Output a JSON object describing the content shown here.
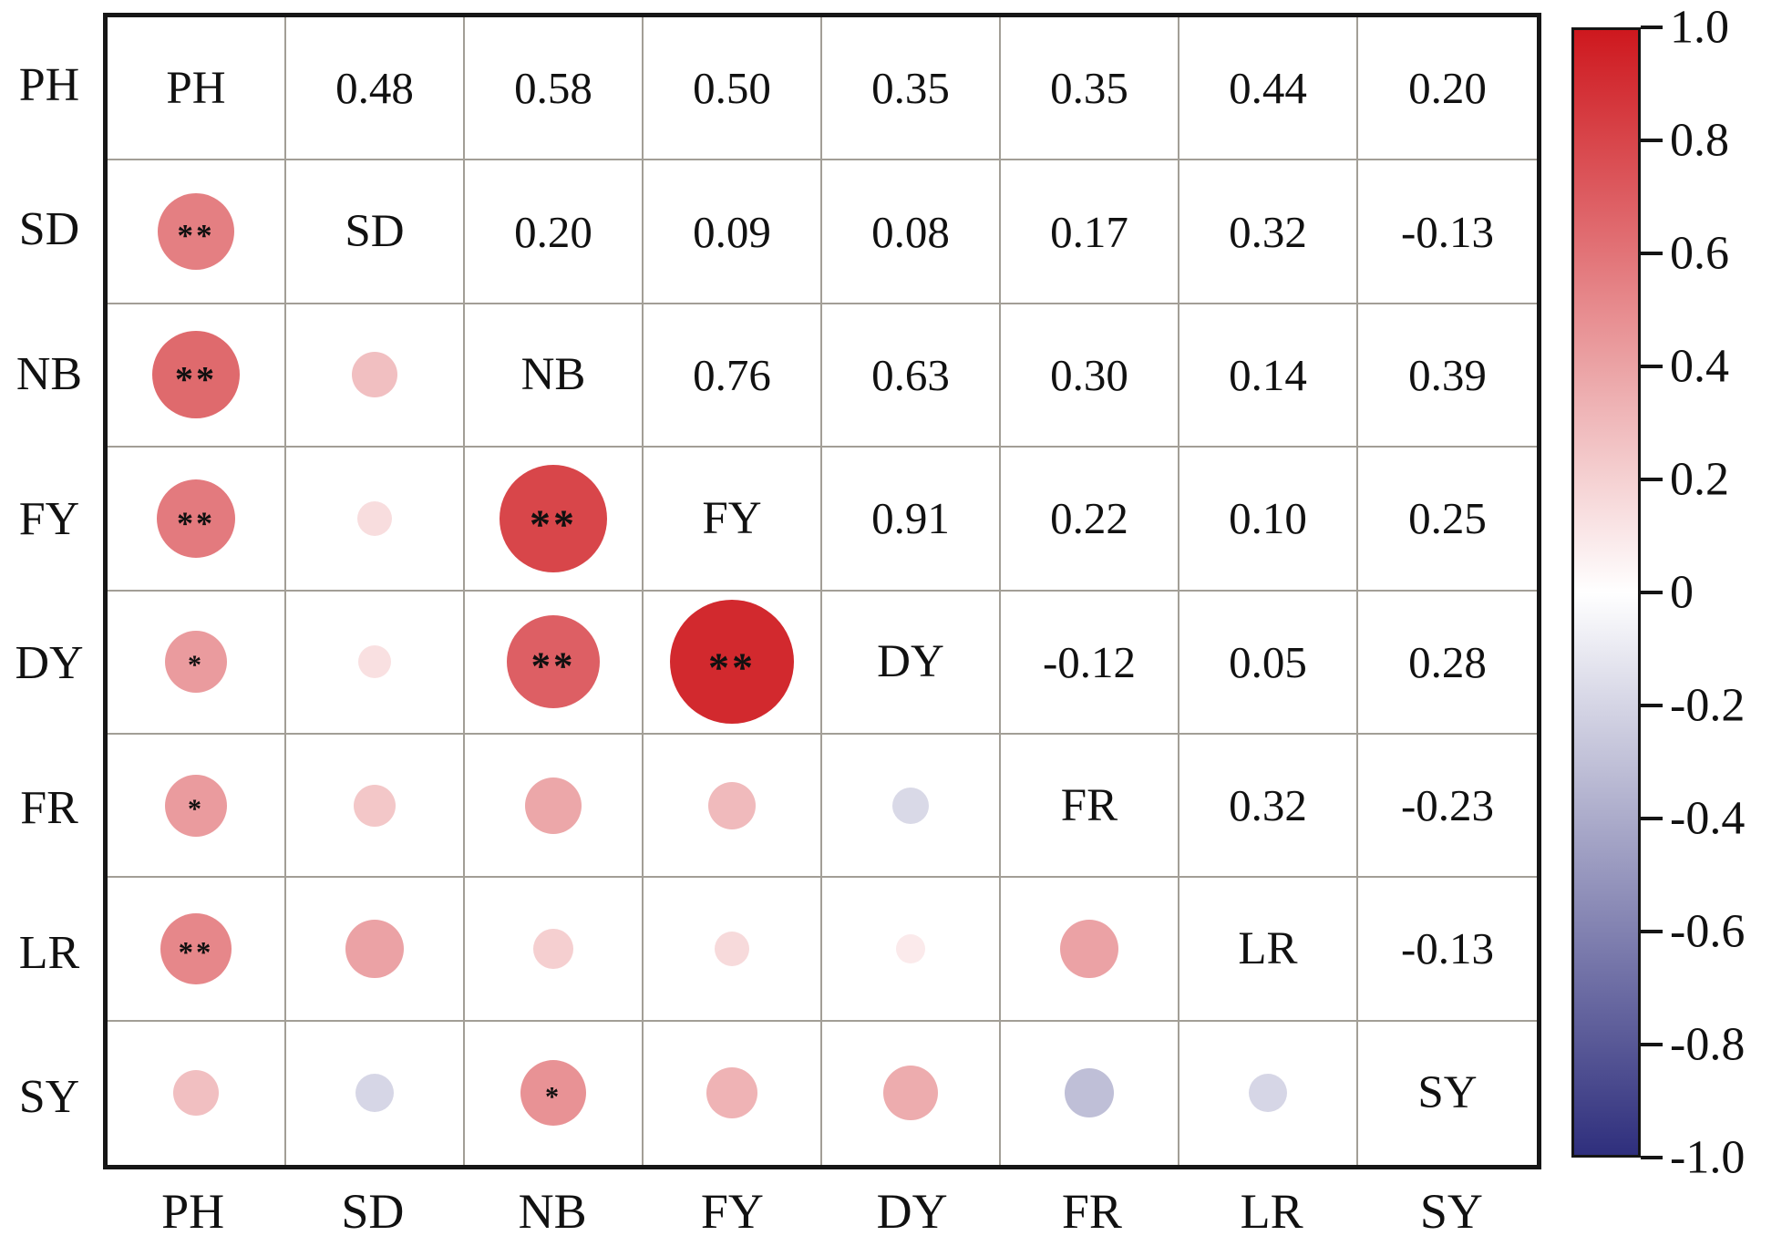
{
  "figure": {
    "background": "#ffffff",
    "grid_line_color": "#a29e96",
    "border_color": "#161616"
  },
  "chart_data": {
    "type": "heatmap",
    "subtype": "correlation-matrix",
    "title": "",
    "variables": [
      "PH",
      "SD",
      "NB",
      "FY",
      "DY",
      "FR",
      "LR",
      "SY"
    ],
    "upper_triangle": "correlation coefficient values",
    "lower_triangle": "circles sized and colored by correlation, asterisks mark significance",
    "diagonal": "variable names",
    "pairs": [
      {
        "row": 0,
        "col": 1,
        "r": 0.48,
        "label": "0.48",
        "sig": "**"
      },
      {
        "row": 0,
        "col": 2,
        "r": 0.58,
        "label": "0.58",
        "sig": "**"
      },
      {
        "row": 0,
        "col": 3,
        "r": 0.5,
        "label": "0.50",
        "sig": "**"
      },
      {
        "row": 0,
        "col": 4,
        "r": 0.35,
        "label": "0.35",
        "sig": "*"
      },
      {
        "row": 0,
        "col": 5,
        "r": 0.35,
        "label": "0.35",
        "sig": "*"
      },
      {
        "row": 0,
        "col": 6,
        "r": 0.44,
        "label": "0.44",
        "sig": "**"
      },
      {
        "row": 0,
        "col": 7,
        "r": 0.2,
        "label": "0.20",
        "sig": ""
      },
      {
        "row": 1,
        "col": 2,
        "r": 0.2,
        "label": "0.20",
        "sig": ""
      },
      {
        "row": 1,
        "col": 3,
        "r": 0.09,
        "label": "0.09",
        "sig": ""
      },
      {
        "row": 1,
        "col": 4,
        "r": 0.08,
        "label": "0.08",
        "sig": ""
      },
      {
        "row": 1,
        "col": 5,
        "r": 0.17,
        "label": "0.17",
        "sig": ""
      },
      {
        "row": 1,
        "col": 6,
        "r": 0.32,
        "label": "0.32",
        "sig": ""
      },
      {
        "row": 1,
        "col": 7,
        "r": -0.13,
        "label": "-0.13",
        "sig": ""
      },
      {
        "row": 2,
        "col": 3,
        "r": 0.76,
        "label": "0.76",
        "sig": "**"
      },
      {
        "row": 2,
        "col": 4,
        "r": 0.63,
        "label": "0.63",
        "sig": "**"
      },
      {
        "row": 2,
        "col": 5,
        "r": 0.3,
        "label": "0.30",
        "sig": ""
      },
      {
        "row": 2,
        "col": 6,
        "r": 0.14,
        "label": "0.14",
        "sig": ""
      },
      {
        "row": 2,
        "col": 7,
        "r": 0.39,
        "label": "0.39",
        "sig": "*"
      },
      {
        "row": 3,
        "col": 4,
        "r": 0.91,
        "label": "0.91",
        "sig": "**"
      },
      {
        "row": 3,
        "col": 5,
        "r": 0.22,
        "label": "0.22",
        "sig": ""
      },
      {
        "row": 3,
        "col": 6,
        "r": 0.1,
        "label": "0.10",
        "sig": ""
      },
      {
        "row": 3,
        "col": 7,
        "r": 0.25,
        "label": "0.25",
        "sig": ""
      },
      {
        "row": 4,
        "col": 5,
        "r": -0.12,
        "label": "-0.12",
        "sig": ""
      },
      {
        "row": 4,
        "col": 6,
        "r": 0.05,
        "label": "0.05",
        "sig": ""
      },
      {
        "row": 4,
        "col": 7,
        "r": 0.28,
        "label": "0.28",
        "sig": ""
      },
      {
        "row": 5,
        "col": 6,
        "r": 0.32,
        "label": "0.32",
        "sig": ""
      },
      {
        "row": 5,
        "col": 7,
        "r": -0.23,
        "label": "-0.23",
        "sig": ""
      },
      {
        "row": 6,
        "col": 7,
        "r": -0.13,
        "label": "-0.13",
        "sig": ""
      }
    ],
    "x_axis_labels": [
      "PH",
      "SD",
      "NB",
      "FY",
      "DY",
      "FR",
      "LR",
      "SY"
    ],
    "y_axis_labels": [
      "PH",
      "SD",
      "NB",
      "FY",
      "DY",
      "FR",
      "LR",
      "SY"
    ],
    "colorbar": {
      "range": [
        -1,
        1
      ],
      "ticks": [
        "1.0",
        "0.8",
        "0.6",
        "0.4",
        "0.2",
        "0",
        "-0.2",
        "-0.4",
        "-0.6",
        "-0.8",
        "-1.0"
      ],
      "tick_values": [
        1,
        0.8,
        0.6,
        0.4,
        0.2,
        0,
        -0.2,
        -0.4,
        -0.6,
        -0.8,
        -1
      ],
      "max_color": "#CE181E",
      "mid_color": "#FFFFFF",
      "min_color": "#2F2F7D",
      "legend_position": "right"
    },
    "grid": true
  }
}
